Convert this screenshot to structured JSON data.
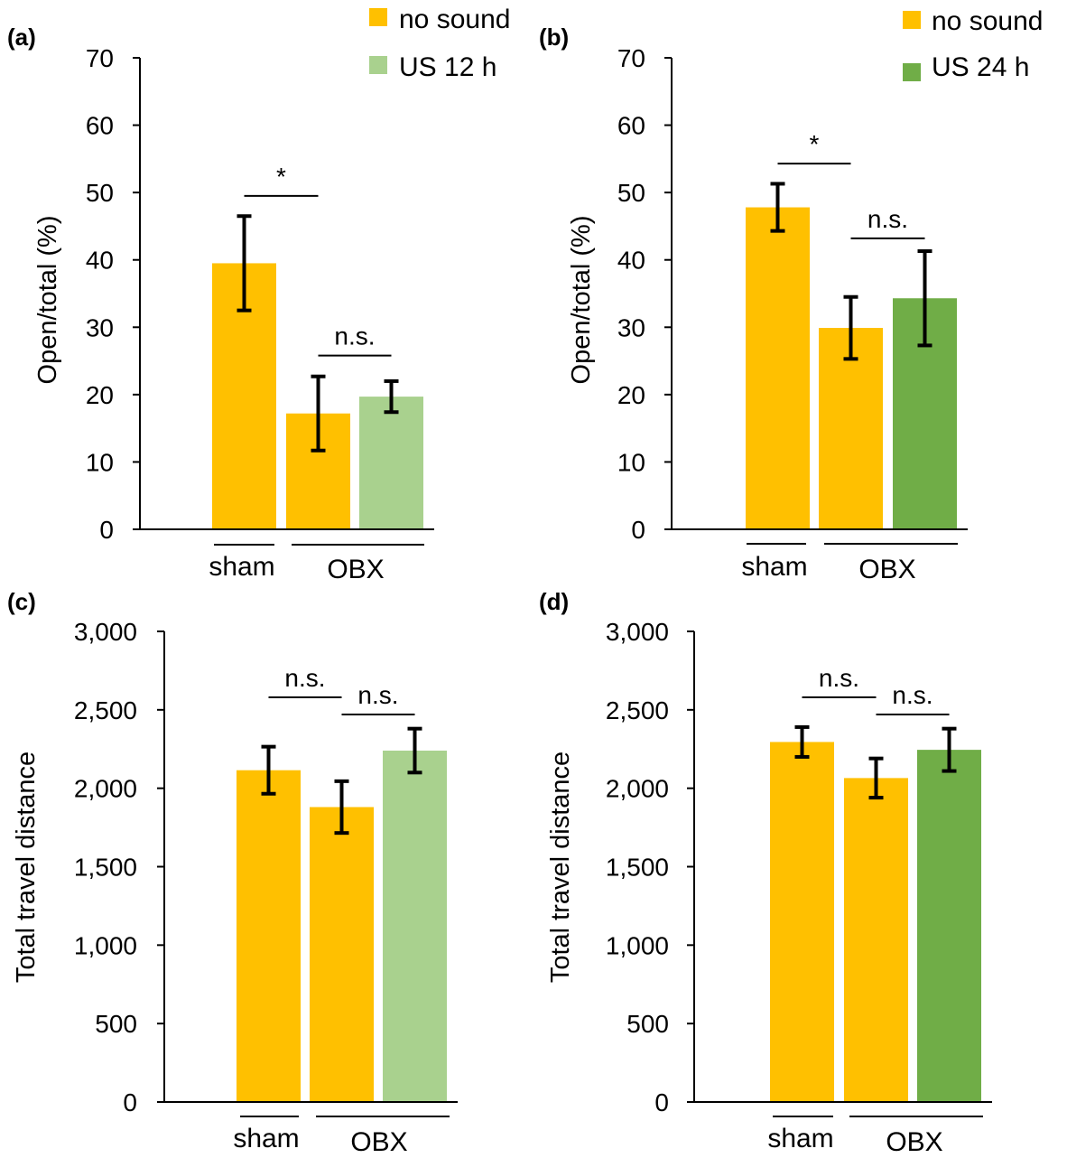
{
  "figure": {
    "colors": {
      "no_sound": "#FFC000",
      "us_12h": "#A9D18E",
      "us_24h": "#70AD47",
      "axis": "#000000"
    },
    "group_labels": [
      "sham",
      "OBX"
    ]
  },
  "chart_data": [
    {
      "panel": "(a)",
      "type": "bar",
      "ylabel": "Open/total (%)",
      "ylim": [
        0,
        70
      ],
      "yticks": [
        0,
        10,
        20,
        30,
        40,
        50,
        60,
        70
      ],
      "ytick_labels": [
        "0",
        "10",
        "20",
        "30",
        "40",
        "50",
        "60",
        "70"
      ],
      "legend": [
        {
          "name": "no sound",
          "color_key": "no_sound"
        },
        {
          "name": "US 12 h",
          "color_key": "us_12h"
        }
      ],
      "bars": [
        {
          "group": "sham",
          "series": "no sound",
          "value": 39.5,
          "error": 7.0,
          "color_key": "no_sound"
        },
        {
          "group": "OBX",
          "series": "no sound",
          "value": 17.2,
          "error": 5.5,
          "color_key": "no_sound"
        },
        {
          "group": "OBX",
          "series": "US 12 h",
          "value": 19.7,
          "error": 2.3,
          "color_key": "us_12h"
        }
      ],
      "comparisons": [
        {
          "from": 0,
          "to": 1,
          "label": "*",
          "y": 49.5
        },
        {
          "from": 1,
          "to": 2,
          "label": "n.s.",
          "y": 25.8
        }
      ]
    },
    {
      "panel": "(b)",
      "type": "bar",
      "ylabel": "Open/total (%)",
      "ylim": [
        0,
        70
      ],
      "yticks": [
        0,
        10,
        20,
        30,
        40,
        50,
        60,
        70
      ],
      "ytick_labels": [
        "0",
        "10",
        "20",
        "30",
        "40",
        "50",
        "60",
        "70"
      ],
      "legend": [
        {
          "name": "no sound",
          "color_key": "no_sound"
        },
        {
          "name": "US 24 h",
          "color_key": "us_24h"
        }
      ],
      "bars": [
        {
          "group": "sham",
          "series": "no sound",
          "value": 47.8,
          "error": 3.5,
          "color_key": "no_sound"
        },
        {
          "group": "OBX",
          "series": "no sound",
          "value": 29.9,
          "error": 4.6,
          "color_key": "no_sound"
        },
        {
          "group": "OBX",
          "series": "US 24 h",
          "value": 34.3,
          "error": 7.0,
          "color_key": "us_24h"
        }
      ],
      "comparisons": [
        {
          "from": 0,
          "to": 1,
          "label": "*",
          "y": 54.3
        },
        {
          "from": 1,
          "to": 2,
          "label": "n.s.",
          "y": 43.2
        }
      ]
    },
    {
      "panel": "(c)",
      "type": "bar",
      "ylabel": "Total travel distance",
      "ylim": [
        0,
        3000
      ],
      "yticks": [
        0,
        500,
        1000,
        1500,
        2000,
        2500,
        3000
      ],
      "ytick_labels": [
        "0",
        "500",
        "1,000",
        "1,500",
        "2,000",
        "2,500",
        "3,000"
      ],
      "legend": [],
      "bars": [
        {
          "group": "sham",
          "series": "no sound",
          "value": 2115,
          "error": 150,
          "color_key": "no_sound"
        },
        {
          "group": "OBX",
          "series": "no sound",
          "value": 1880,
          "error": 165,
          "color_key": "no_sound"
        },
        {
          "group": "OBX",
          "series": "US 12 h",
          "value": 2240,
          "error": 140,
          "color_key": "us_12h"
        }
      ],
      "comparisons": [
        {
          "from": 0,
          "to": 1,
          "label": "n.s.",
          "y": 2580
        },
        {
          "from": 1,
          "to": 2,
          "label": "n.s.",
          "y": 2470
        }
      ]
    },
    {
      "panel": "(d)",
      "type": "bar",
      "ylabel": "Total travel distance",
      "ylim": [
        0,
        3000
      ],
      "yticks": [
        0,
        500,
        1000,
        1500,
        2000,
        2500,
        3000
      ],
      "ytick_labels": [
        "0",
        "500",
        "1,000",
        "1,500",
        "2,000",
        "2,500",
        "3,000"
      ],
      "legend": [],
      "bars": [
        {
          "group": "sham",
          "series": "no sound",
          "value": 2295,
          "error": 95,
          "color_key": "no_sound"
        },
        {
          "group": "OBX",
          "series": "no sound",
          "value": 2065,
          "error": 125,
          "color_key": "no_sound"
        },
        {
          "group": "OBX",
          "series": "US 24 h",
          "value": 2245,
          "error": 135,
          "color_key": "us_24h"
        }
      ],
      "comparisons": [
        {
          "from": 0,
          "to": 1,
          "label": "n.s.",
          "y": 2580
        },
        {
          "from": 1,
          "to": 2,
          "label": "n.s.",
          "y": 2470
        }
      ]
    }
  ]
}
